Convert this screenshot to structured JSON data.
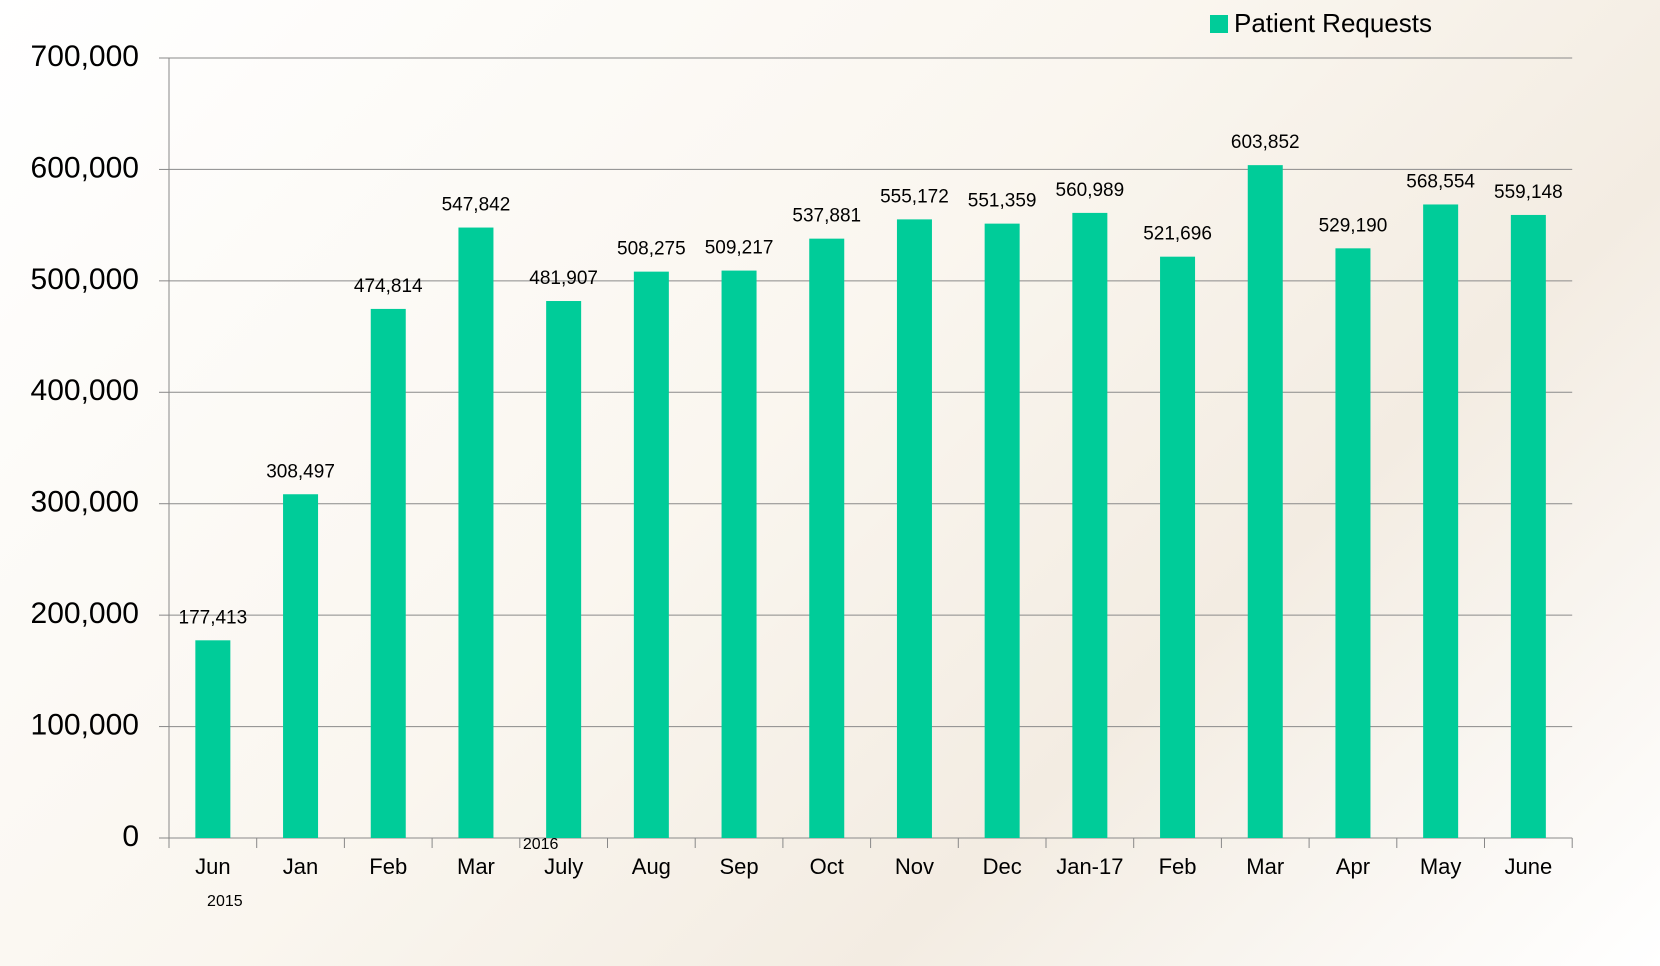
{
  "chart_data": {
    "type": "bar",
    "categories": [
      "Jun",
      "Jan",
      "Feb",
      "Mar",
      "July",
      "Aug",
      "Sep",
      "Oct",
      "Nov",
      "Dec",
      "Jan-17",
      "Feb",
      "Mar",
      "Apr",
      "May",
      "June"
    ],
    "series": [
      {
        "name": "Patient Requests",
        "color": "#00cc99",
        "values": [
          177413,
          308497,
          474814,
          547842,
          481907,
          508275,
          509217,
          537881,
          555172,
          551359,
          560989,
          521696,
          603852,
          529190,
          568554,
          559148
        ],
        "value_labels": [
          "177,413",
          "308,497",
          "474,814",
          "547,842",
          "481,907",
          "508,275",
          "509,217",
          "537,881",
          "555,172",
          "551,359",
          "560,989",
          "521,696",
          "603,852",
          "529,190",
          "568,554",
          "559,148"
        ]
      }
    ],
    "ylim": [
      0,
      700000
    ],
    "yticks": [
      0,
      {
        "value": 100000,
        "label": "100,000"
      },
      {
        "value": 200000,
        "label": "200,000"
      },
      {
        "value": 300000,
        "label": "300,000"
      },
      {
        "value": 400000,
        "label": "400,000"
      },
      {
        "value": 500000,
        "label": "500,000"
      },
      {
        "value": 600000,
        "label": "600,000"
      },
      {
        "value": 700000,
        "label": "700,000"
      }
    ],
    "grid": true,
    "legend": "top-right",
    "annotations": [
      "2015",
      "2016"
    ]
  }
}
